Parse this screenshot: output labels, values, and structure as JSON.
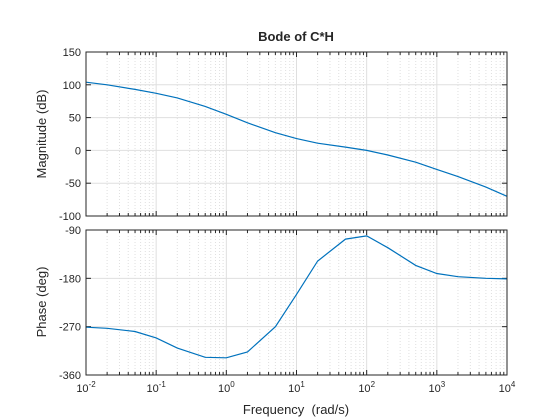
{
  "chart_data": [
    {
      "type": "line",
      "title": "Bode of C*H",
      "ylabel": "Magnitude (dB)",
      "xlabel": "",
      "xscale": "log",
      "xlim": [
        0.01,
        10000
      ],
      "ylim": [
        -100,
        150
      ],
      "yticks": [
        150,
        100,
        50,
        0,
        -50,
        -100
      ],
      "ytick_labels": [
        "150",
        "100",
        "50",
        "0",
        "-50",
        "-100"
      ],
      "grid": true,
      "series": [
        {
          "color": "#0072bd",
          "x": [
            0.01,
            0.02,
            0.05,
            0.1,
            0.2,
            0.5,
            1,
            2,
            5,
            10,
            20,
            50,
            100,
            200,
            500,
            1000,
            2000,
            5000,
            10000
          ],
          "y": [
            104,
            100,
            93,
            87,
            80,
            67,
            55,
            42,
            27,
            18,
            11,
            5,
            0,
            -7,
            -18,
            -29,
            -40,
            -56,
            -70
          ]
        }
      ]
    },
    {
      "type": "line",
      "title": "",
      "ylabel": "Phase (deg)",
      "xlabel": "Frequency  (rad/s)",
      "xscale": "log",
      "xlim": [
        0.01,
        10000
      ],
      "ylim": [
        -360,
        -90
      ],
      "yticks": [
        -90,
        -180,
        -270,
        -360
      ],
      "ytick_labels": [
        "-90",
        "-180",
        "-270",
        "-360"
      ],
      "xtick_bases": [
        "10",
        "10",
        "10",
        "10",
        "10",
        "10",
        "10"
      ],
      "xtick_exps": [
        "-2",
        "-1",
        "0",
        "1",
        "2",
        "3",
        "4"
      ],
      "grid": true,
      "series": [
        {
          "color": "#0072bd",
          "x": [
            0.01,
            0.02,
            0.05,
            0.1,
            0.2,
            0.5,
            1,
            2,
            5,
            10,
            20,
            50,
            100,
            200,
            500,
            1000,
            2000,
            5000,
            10000
          ],
          "y": [
            -271,
            -273,
            -279,
            -291,
            -310,
            -327,
            -328,
            -317,
            -270,
            -210,
            -148,
            -107,
            -101,
            -123,
            -156,
            -171,
            -177,
            -180,
            -181
          ]
        }
      ]
    }
  ]
}
